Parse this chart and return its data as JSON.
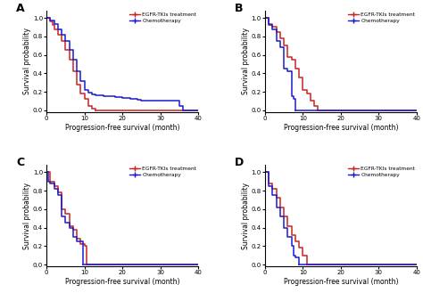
{
  "egfr_color": "#cc2222",
  "chemo_color": "#1a1acc",
  "xlabel": "Progression-free survival (month)",
  "ylabel": "Survival probability",
  "xlim": [
    0,
    40
  ],
  "ylim": [
    -0.02,
    1.08
  ],
  "xticks": [
    0,
    10,
    20,
    30,
    40
  ],
  "yticks": [
    0.0,
    0.2,
    0.4,
    0.6,
    0.8,
    1.0
  ],
  "panel_A": {
    "egfr_t": [
      0,
      0.5,
      1,
      1.5,
      2,
      3,
      4,
      5,
      6,
      7,
      8,
      9,
      10,
      11,
      12,
      13
    ],
    "egfr_s": [
      1.0,
      1.0,
      0.96,
      0.92,
      0.88,
      0.82,
      0.75,
      0.65,
      0.55,
      0.42,
      0.28,
      0.18,
      0.12,
      0.05,
      0.02,
      0.0
    ],
    "chemo_t": [
      0,
      1,
      2,
      3,
      4,
      5,
      6,
      7,
      8,
      9,
      10,
      11,
      12,
      13,
      14,
      15,
      16,
      18,
      20,
      22,
      23,
      24,
      25,
      30,
      35,
      36
    ],
    "chemo_s": [
      1.0,
      0.97,
      0.93,
      0.88,
      0.82,
      0.75,
      0.65,
      0.55,
      0.42,
      0.32,
      0.22,
      0.19,
      0.17,
      0.16,
      0.16,
      0.15,
      0.15,
      0.14,
      0.13,
      0.12,
      0.12,
      0.11,
      0.1,
      0.1,
      0.05,
      0.0
    ]
  },
  "panel_B": {
    "egfr_t": [
      0,
      0.5,
      1,
      2,
      3,
      4,
      5,
      6,
      7,
      8,
      9,
      10,
      11,
      12,
      13,
      14
    ],
    "egfr_s": [
      1.0,
      1.0,
      0.93,
      0.9,
      0.85,
      0.78,
      0.7,
      0.58,
      0.55,
      0.45,
      0.35,
      0.22,
      0.18,
      0.1,
      0.05,
      0.0
    ],
    "chemo_t": [
      0,
      0.5,
      1,
      2,
      3,
      4,
      5,
      6,
      7,
      7.5,
      8
    ],
    "chemo_s": [
      1.0,
      1.0,
      0.92,
      0.88,
      0.75,
      0.68,
      0.45,
      0.42,
      0.15,
      0.12,
      0.0
    ]
  },
  "panel_C": {
    "egfr_t": [
      0,
      0.3,
      1,
      2,
      3,
      4,
      5,
      6,
      7,
      8,
      9,
      10,
      10.5
    ],
    "egfr_s": [
      1.0,
      1.0,
      0.9,
      0.85,
      0.78,
      0.6,
      0.55,
      0.42,
      0.38,
      0.28,
      0.22,
      0.2,
      0.0
    ],
    "chemo_t": [
      0,
      0.5,
      1,
      2,
      3,
      4,
      5,
      6,
      7,
      8,
      9,
      9.5
    ],
    "chemo_s": [
      1.0,
      0.9,
      0.88,
      0.82,
      0.75,
      0.52,
      0.45,
      0.4,
      0.3,
      0.25,
      0.25,
      0.0
    ]
  },
  "panel_D": {
    "egfr_t": [
      0,
      0.5,
      1,
      2,
      3,
      4,
      5,
      6,
      7,
      8,
      9,
      10,
      11
    ],
    "egfr_s": [
      1.0,
      1.0,
      0.88,
      0.82,
      0.72,
      0.62,
      0.52,
      0.42,
      0.32,
      0.25,
      0.18,
      0.1,
      0.0
    ],
    "chemo_t": [
      0,
      0.5,
      1,
      2,
      3,
      4,
      5,
      6,
      7,
      7.5,
      8,
      9
    ],
    "chemo_s": [
      1.0,
      1.0,
      0.85,
      0.75,
      0.62,
      0.52,
      0.4,
      0.3,
      0.2,
      0.1,
      0.08,
      0.0
    ]
  }
}
